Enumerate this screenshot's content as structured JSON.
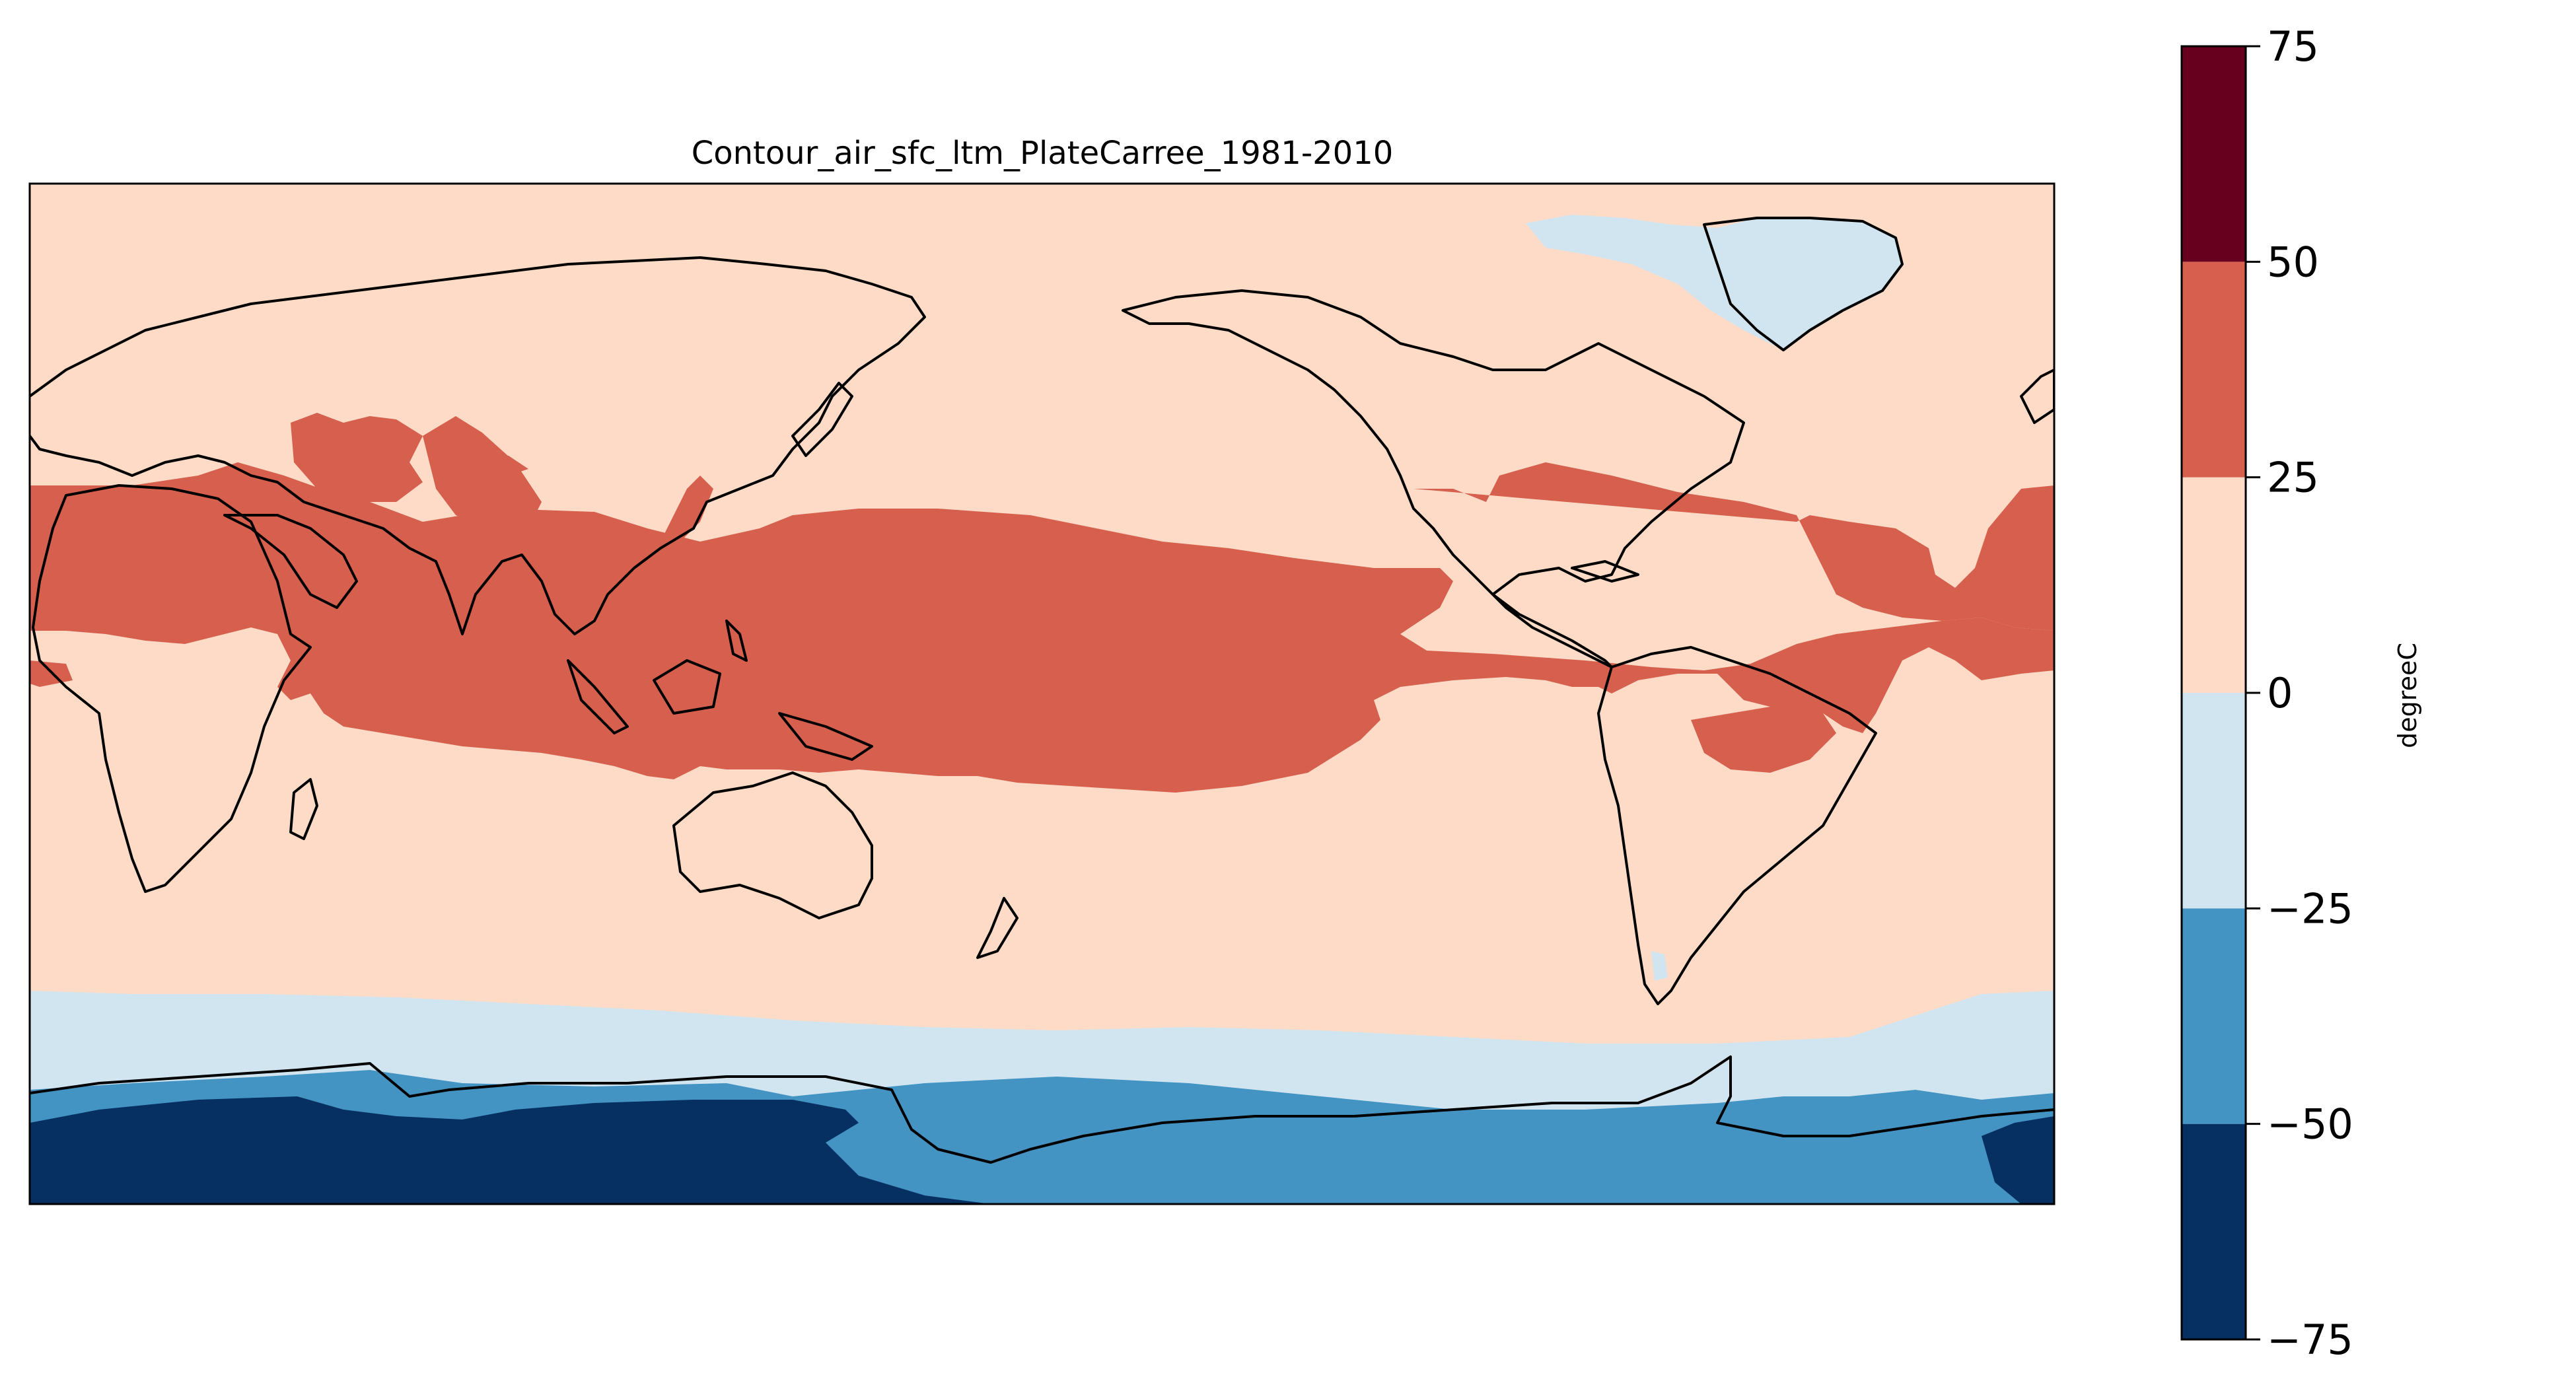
{
  "figure": {
    "title": "Contour_air_sfc_ltm_PlateCarree_1981-2010"
  },
  "map": {
    "projection": "PlateCarree",
    "variable": "air",
    "level": "sfc",
    "statistic": "ltm",
    "period": "1981-2010",
    "central_longitude": 180,
    "coastlines": true
  },
  "colorbar": {
    "unit_label": "degreeC",
    "orientation": "vertical",
    "ticks": [
      "75",
      "50",
      "25",
      "0",
      "−25",
      "−50",
      "−75"
    ],
    "levels": [
      -75,
      -50,
      -25,
      0,
      25,
      50,
      75
    ],
    "colors": [
      "#053061",
      "#4393c3",
      "#d1e5f0",
      "#fddbc7",
      "#d6604d",
      "#67001f"
    ],
    "colormap": "RdBu_r"
  },
  "chart_data": {
    "type": "heatmap",
    "title": "Contour_air_sfc_ltm_PlateCarree_1981-2010",
    "colorbar_label": "degreeC",
    "contour_levels": [
      -75,
      -50,
      -25,
      0,
      25,
      50,
      75
    ],
    "bands": [
      {
        "range": [
          -75,
          -50
        ],
        "color": "#053061"
      },
      {
        "range": [
          -50,
          -25
        ],
        "color": "#4393c3"
      },
      {
        "range": [
          -25,
          0
        ],
        "color": "#d1e5f0"
      },
      {
        "range": [
          0,
          25
        ],
        "color": "#fddbc7"
      },
      {
        "range": [
          25,
          50
        ],
        "color": "#d6604d"
      },
      {
        "range": [
          50,
          75
        ],
        "color": "#67001f"
      }
    ]
  }
}
